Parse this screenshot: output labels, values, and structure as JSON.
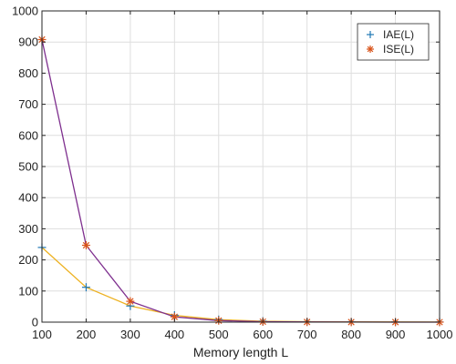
{
  "chart_data": {
    "type": "line",
    "title": "",
    "xlabel": "Memory length L",
    "ylabel": "",
    "x": [
      100,
      200,
      300,
      400,
      500,
      600,
      700,
      800,
      900,
      1000
    ],
    "xlim": [
      100,
      1000
    ],
    "ylim": [
      0,
      1000
    ],
    "xticks": [
      "100",
      "200",
      "300",
      "400",
      "500",
      "600",
      "700",
      "800",
      "900",
      "1000"
    ],
    "yticks": [
      "0",
      "100",
      "200",
      "300",
      "400",
      "500",
      "600",
      "700",
      "800",
      "900",
      "1000"
    ],
    "grid": true,
    "legend_position": "top-right",
    "series": [
      {
        "name": "IAE(L)",
        "marker": "plus",
        "marker_color": "#1f77b4",
        "line_color": "#EDB120",
        "values": [
          240,
          112,
          52,
          22,
          8,
          3,
          1.5,
          1,
          0.5,
          0.3
        ]
      },
      {
        "name": "ISE(L)",
        "marker": "asterisk",
        "marker_color": "#D95319",
        "line_color": "#7E2F8E",
        "values": [
          908,
          247,
          67,
          17,
          5,
          1.5,
          0.5,
          0.2,
          0.1,
          0.05
        ]
      }
    ]
  }
}
